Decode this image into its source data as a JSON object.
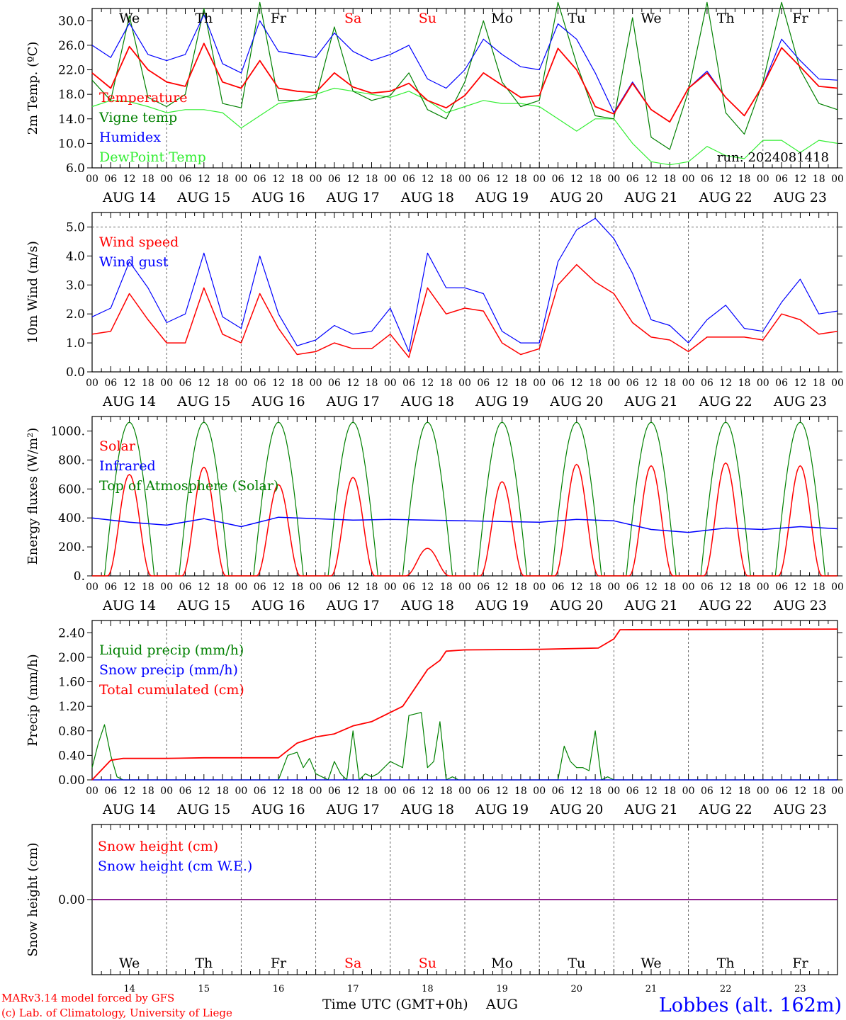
{
  "footer": {
    "model_line": "MARv3.14 model forced by GFS",
    "credit_line": "(c) Lab. of Climatology, University of Liege",
    "time_label": "Time UTC (GMT+0h)",
    "month_label": "AUG",
    "station_label": "Lobbes (alt. 162m)"
  },
  "colors": {
    "red": "#ff0000",
    "green": "#008000",
    "blue": "#0000ff",
    "lightgreen": "#33ee33",
    "purple": "#800080",
    "axis": "#000000",
    "guide": "#555555"
  },
  "chart_data": [
    {
      "type": "line",
      "id": "temperature",
      "ylabel": "2m Temp. (ºC)",
      "ylim": [
        6.0,
        32.0
      ],
      "yticks": [
        "6.0",
        "10.0",
        "14.0",
        "18.0",
        "22.0",
        "26.0",
        "30.0"
      ],
      "ytick_values": [
        6,
        10,
        14,
        18,
        22,
        26,
        30
      ],
      "weekday_labels": [
        {
          "text": "We",
          "color": "black"
        },
        {
          "text": "Th",
          "color": "black"
        },
        {
          "text": "Fr",
          "color": "black"
        },
        {
          "text": "Sa",
          "color": "red"
        },
        {
          "text": "Su",
          "color": "red"
        },
        {
          "text": "Mo",
          "color": "black"
        },
        {
          "text": "Tu",
          "color": "black"
        },
        {
          "text": "We",
          "color": "black"
        },
        {
          "text": "Th",
          "color": "black"
        },
        {
          "text": "Fr",
          "color": "black"
        }
      ],
      "annotation": "run: 2024081418",
      "x_hours": [
        0,
        6,
        12,
        18,
        24,
        30,
        36,
        42,
        48,
        54,
        60,
        66,
        72,
        78,
        84,
        90,
        96,
        102,
        108,
        114,
        120,
        126,
        132,
        138,
        144,
        150,
        156,
        162,
        168,
        174,
        180,
        186,
        192,
        198,
        204,
        210,
        216,
        222,
        228,
        234,
        240
      ],
      "series": [
        {
          "name": "Temperature",
          "color": "red",
          "values": [
            21.5,
            19.0,
            25.8,
            22.0,
            20.0,
            19.3,
            26.3,
            20.0,
            19.0,
            23.5,
            19.0,
            18.5,
            18.3,
            21.5,
            19.2,
            18.2,
            18.5,
            19.8,
            17.0,
            15.8,
            17.8,
            21.5,
            19.5,
            17.5,
            17.8,
            25.5,
            22.0,
            16.0,
            14.8,
            19.8,
            15.5,
            13.5,
            19.0,
            21.5,
            17.5,
            14.5,
            19.5,
            25.6,
            22.5,
            19.3,
            19.0
          ]
        },
        {
          "name": "Vigne temp",
          "color": "green",
          "values": [
            20.3,
            17.0,
            30.8,
            17.5,
            16.0,
            18.0,
            32.0,
            16.5,
            15.8,
            33.0,
            17.0,
            17.0,
            17.3,
            29.0,
            18.5,
            17.0,
            17.8,
            21.5,
            15.5,
            14.0,
            20.0,
            30.0,
            20.0,
            16.0,
            17.0,
            33.0,
            23.0,
            14.5,
            14.0,
            30.5,
            11.0,
            9.0,
            18.5,
            33.0,
            15.0,
            11.5,
            20.0,
            33.0,
            22.0,
            16.5,
            15.5
          ]
        },
        {
          "name": "Humidex",
          "color": "blue",
          "values": [
            26.0,
            24.0,
            29.6,
            24.5,
            23.5,
            24.5,
            31.0,
            23.0,
            21.5,
            30.0,
            25.0,
            24.5,
            24.0,
            28.0,
            25.0,
            23.5,
            24.5,
            26.0,
            20.5,
            19.0,
            22.0,
            27.0,
            24.5,
            22.5,
            22.0,
            29.5,
            27.0,
            21.5,
            15.0,
            20.0,
            15.5,
            13.5,
            19.0,
            21.8,
            17.5,
            14.5,
            19.5,
            27.0,
            23.5,
            20.5,
            20.3
          ]
        },
        {
          "name": "DewPoint Temp",
          "color": "lightgreen",
          "values": [
            16.0,
            17.0,
            16.8,
            16.0,
            15.0,
            15.5,
            15.5,
            15.0,
            12.5,
            14.5,
            16.5,
            17.0,
            18.0,
            19.0,
            18.5,
            18.0,
            17.5,
            18.5,
            17.0,
            15.0,
            16.0,
            17.0,
            16.5,
            16.5,
            16.0,
            14.0,
            12.0,
            14.0,
            14.0,
            10.0,
            7.0,
            6.5,
            7.0,
            9.5,
            8.0,
            7.5,
            10.5,
            10.5,
            8.5,
            10.5,
            10.0
          ]
        }
      ]
    },
    {
      "type": "line",
      "id": "wind",
      "ylabel": "10m Wind (m/s)",
      "ylim": [
        0.0,
        5.5
      ],
      "yticks": [
        "0.0",
        "1.0",
        "2.0",
        "3.0",
        "4.0",
        "5.0"
      ],
      "ytick_values": [
        0,
        1,
        2,
        3,
        4,
        5
      ],
      "reference_line": 5.0,
      "x_hours": [
        0,
        6,
        12,
        18,
        24,
        30,
        36,
        42,
        48,
        54,
        60,
        66,
        72,
        78,
        84,
        90,
        96,
        102,
        108,
        114,
        120,
        126,
        132,
        138,
        144,
        150,
        156,
        162,
        168,
        174,
        180,
        186,
        192,
        198,
        204,
        210,
        216,
        222,
        228,
        234,
        240
      ],
      "series": [
        {
          "name": "Wind speed",
          "color": "red",
          "values": [
            1.3,
            1.4,
            2.7,
            1.8,
            1.0,
            1.0,
            2.9,
            1.3,
            1.0,
            2.7,
            1.5,
            0.6,
            0.7,
            1.0,
            0.8,
            0.8,
            1.3,
            0.5,
            2.9,
            2.0,
            2.2,
            2.1,
            1.0,
            0.6,
            0.8,
            3.0,
            3.7,
            3.1,
            2.7,
            1.7,
            1.2,
            1.1,
            0.7,
            1.2,
            1.2,
            1.2,
            1.1,
            2.0,
            1.8,
            1.3,
            1.4
          ]
        },
        {
          "name": "Wind gust",
          "color": "blue",
          "values": [
            1.9,
            2.2,
            3.8,
            2.9,
            1.7,
            2.0,
            4.1,
            1.9,
            1.5,
            4.0,
            2.0,
            0.9,
            1.1,
            1.6,
            1.3,
            1.4,
            2.2,
            0.7,
            4.1,
            2.9,
            2.9,
            2.7,
            1.4,
            1.0,
            1.0,
            3.8,
            4.9,
            5.3,
            4.6,
            3.4,
            1.8,
            1.6,
            1.0,
            1.8,
            2.3,
            1.5,
            1.4,
            2.4,
            3.2,
            2.0,
            2.1
          ]
        }
      ]
    },
    {
      "type": "line",
      "id": "energy",
      "ylabel": "Energy fluxes (W/m²)",
      "ylim": [
        0,
        1100
      ],
      "yticks": [
        "0.",
        "200.",
        "400.",
        "600.",
        "800.",
        "1000."
      ],
      "ytick_values": [
        0,
        200,
        400,
        600,
        800,
        1000
      ],
      "solar_peaks": [
        700,
        750,
        630,
        680,
        190,
        650,
        770,
        760,
        780,
        760
      ],
      "toa_peak": 1060,
      "series": [
        {
          "name": "Solar",
          "color": "red"
        },
        {
          "name": "Infrared",
          "color": "blue",
          "x_hours": [
            0,
            12,
            24,
            36,
            48,
            60,
            72,
            84,
            96,
            108,
            120,
            132,
            144,
            156,
            168,
            180,
            192,
            204,
            216,
            228,
            240
          ],
          "values": [
            400,
            370,
            350,
            395,
            340,
            405,
            395,
            385,
            390,
            385,
            380,
            375,
            370,
            390,
            380,
            320,
            300,
            330,
            320,
            340,
            325
          ]
        },
        {
          "name": "Top of Atmosphere (Solar)",
          "color": "green"
        }
      ]
    },
    {
      "type": "line",
      "id": "precip",
      "ylabel": "Precip (mm/h)",
      "ylim": [
        0.0,
        2.6
      ],
      "yticks": [
        "0.00",
        "0.40",
        "0.80",
        "1.20",
        "1.60",
        "2.00",
        "2.40"
      ],
      "ytick_values": [
        0,
        0.4,
        0.8,
        1.2,
        1.6,
        2.0,
        2.4
      ],
      "series": [
        {
          "name": "Liquid precip (mm/h)",
          "color": "green",
          "x_hours": [
            0,
            2,
            4,
            6,
            8,
            10,
            12,
            20,
            60,
            63,
            66,
            68,
            70,
            72,
            74,
            76,
            78,
            80,
            82,
            84,
            86,
            88,
            90,
            92,
            96,
            100,
            102,
            106,
            108,
            110,
            112,
            114,
            116,
            118,
            120,
            150,
            152,
            154,
            156,
            158,
            160,
            162,
            164,
            166,
            168,
            170,
            240
          ],
          "values": [
            0.2,
            0.6,
            0.9,
            0.4,
            0.05,
            0.0,
            0.0,
            0.0,
            0.0,
            0.4,
            0.45,
            0.2,
            0.35,
            0.1,
            0.05,
            0.0,
            0.3,
            0.1,
            0.0,
            0.8,
            0.0,
            0.1,
            0.05,
            0.1,
            0.3,
            0.2,
            1.05,
            1.1,
            0.2,
            0.3,
            0.95,
            0.0,
            0.05,
            0.0,
            0.0,
            0.0,
            0.55,
            0.3,
            0.2,
            0.2,
            0.15,
            0.8,
            0.0,
            0.05,
            0.0,
            0.0,
            0.0
          ]
        },
        {
          "name": "Snow precip (mm/h)",
          "color": "blue",
          "x_hours": [
            0,
            240
          ],
          "values": [
            0,
            0
          ]
        },
        {
          "name": "Total cumulated (cm)",
          "color": "red",
          "x_hours": [
            0,
            6,
            10,
            24,
            36,
            48,
            60,
            66,
            72,
            78,
            84,
            90,
            96,
            100,
            104,
            108,
            112,
            114,
            120,
            144,
            163,
            168,
            170,
            240
          ],
          "values": [
            0.0,
            0.32,
            0.35,
            0.35,
            0.36,
            0.36,
            0.36,
            0.6,
            0.7,
            0.75,
            0.88,
            0.95,
            1.1,
            1.2,
            1.5,
            1.8,
            1.95,
            2.1,
            2.12,
            2.13,
            2.15,
            2.3,
            2.45,
            2.46
          ]
        }
      ]
    },
    {
      "type": "line",
      "id": "snow",
      "ylabel": "Snow height (cm)",
      "ytick_label": "0.00",
      "weekday_labels": [
        {
          "text": "We",
          "color": "black"
        },
        {
          "text": "Th",
          "color": "black"
        },
        {
          "text": "Fr",
          "color": "black"
        },
        {
          "text": "Sa",
          "color": "red"
        },
        {
          "text": "Su",
          "color": "red"
        },
        {
          "text": "Mo",
          "color": "black"
        },
        {
          "text": "Tu",
          "color": "black"
        },
        {
          "text": "We",
          "color": "black"
        },
        {
          "text": "Th",
          "color": "black"
        },
        {
          "text": "Fr",
          "color": "black"
        }
      ],
      "day_numbers": [
        "14",
        "15",
        "16",
        "17",
        "18",
        "19",
        "20",
        "21",
        "22",
        "23"
      ],
      "series": [
        {
          "name": "Snow height (cm)",
          "color": "red",
          "values": [
            0.0
          ]
        },
        {
          "name": "Snow height (cm W.E.)",
          "color": "blue",
          "values": [
            0.0
          ]
        }
      ]
    }
  ],
  "x_axis": {
    "hour_ticks": [
      "00",
      "06",
      "12",
      "18"
    ],
    "end_tick": "00",
    "date_labels": [
      "AUG 14",
      "AUG 15",
      "AUG 16",
      "AUG 17",
      "AUG 18",
      "AUG 19",
      "AUG 20",
      "AUG 21",
      "AUG 22",
      "AUG 23"
    ]
  }
}
